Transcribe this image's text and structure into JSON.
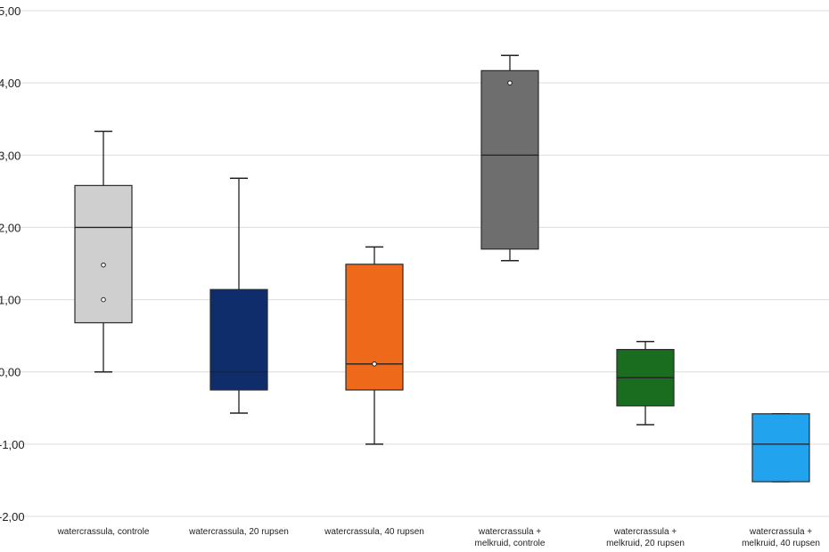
{
  "chart_data": {
    "type": "box",
    "title": "",
    "xlabel": "",
    "ylabel": "",
    "ylim": [
      -2,
      5
    ],
    "y_ticks": [
      {
        "value": 5,
        "label": "5,00"
      },
      {
        "value": 4,
        "label": "4,00"
      },
      {
        "value": 3,
        "label": "3,00"
      },
      {
        "value": 2,
        "label": "2,00"
      },
      {
        "value": 1,
        "label": "1,00"
      },
      {
        "value": 0,
        "label": "0,00"
      },
      {
        "value": -1,
        "label": "-1,00"
      },
      {
        "value": -2,
        "label": "-2,00"
      }
    ],
    "grid": true,
    "legend": "none",
    "categories": [
      {
        "label_lines": [
          "watercrassula, controle"
        ],
        "color": "#cfcfcf",
        "whisker_low": 0.0,
        "q1": 0.68,
        "median": 2.0,
        "q3": 2.58,
        "whisker_high": 3.33,
        "points": [
          1.48,
          1.0
        ]
      },
      {
        "label_lines": [
          "watercrassula, 20 rupsen"
        ],
        "color": "#0f2d6b",
        "whisker_low": -0.57,
        "q1": -0.25,
        "median": 0.0,
        "q3": 1.14,
        "whisker_high": 2.68,
        "points": []
      },
      {
        "label_lines": [
          "watercrassula, 40 rupsen"
        ],
        "color": "#ee6a1a",
        "whisker_low": -1.0,
        "q1": -0.25,
        "median": 0.11,
        "q3": 1.49,
        "whisker_high": 1.73,
        "points": [
          0.11
        ]
      },
      {
        "label_lines": [
          "watercrassula +",
          "melkruid, controle"
        ],
        "color": "#6e6e6e",
        "whisker_low": 1.54,
        "q1": 1.7,
        "median": 3.0,
        "q3": 4.17,
        "whisker_high": 4.38,
        "points": [
          4.0
        ]
      },
      {
        "label_lines": [
          "watercrassula +",
          "melkruid, 20 rupsen"
        ],
        "color": "#1a6d1e",
        "whisker_low": -0.73,
        "q1": -0.47,
        "median": -0.08,
        "q3": 0.31,
        "whisker_high": 0.42,
        "points": []
      },
      {
        "label_lines": [
          "watercrassula +",
          "melkruid, 40 rupsen"
        ],
        "color": "#22a3ee",
        "whisker_low": -1.52,
        "q1": -1.52,
        "median": -1.0,
        "q3": -0.58,
        "whisker_high": -0.58,
        "points": []
      }
    ]
  }
}
